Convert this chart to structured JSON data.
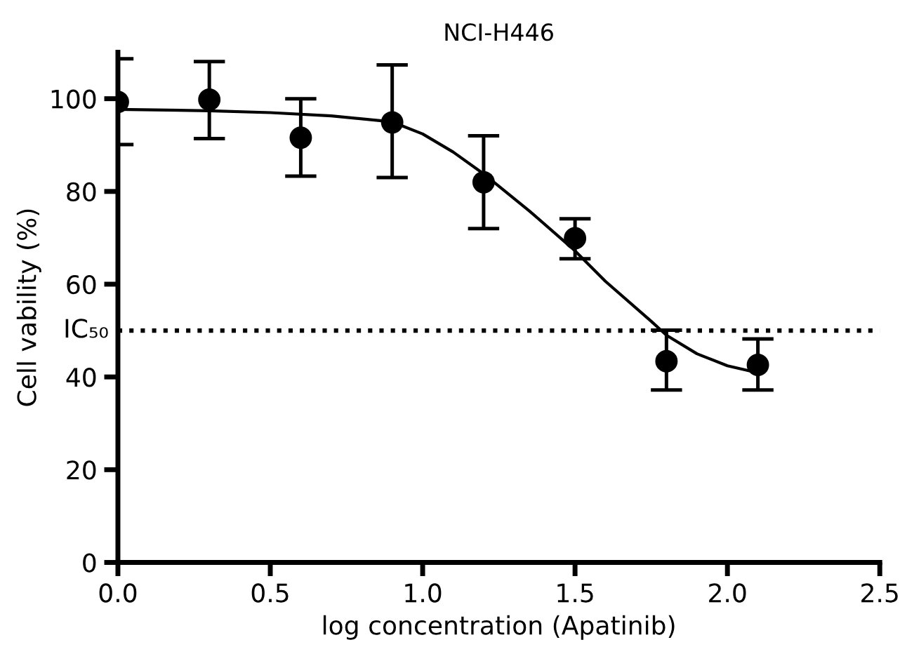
{
  "chart_data": {
    "type": "scatter",
    "title": "NCI-H446",
    "xlabel": "log concentration (Apatinib)",
    "ylabel": "Cell vability (%)",
    "xlim": [
      0,
      2.5
    ],
    "xticks": [
      {
        "value": 0,
        "label": "0.0"
      },
      0.5,
      {
        "value": 1,
        "label": "1.0"
      },
      1.5,
      {
        "value": 2,
        "label": "2.0"
      },
      2.5
    ],
    "ylim": [
      0,
      110
    ],
    "yticks": [
      0,
      20,
      40,
      60,
      80,
      100
    ],
    "grid": false,
    "legend": false,
    "marker": "circle",
    "series": [
      {
        "color": "#000000",
        "x": [
          0,
          0.3,
          0.6,
          0.9,
          1.2,
          1.5,
          1.8,
          2.1
        ],
        "values": [
          99.3,
          99.8,
          91.6,
          94.9,
          82.0,
          69.9,
          43.4,
          42.6
        ],
        "errors": [
          [
            90.1,
            108.6
          ],
          [
            91.4,
            108
          ],
          [
            83.3,
            100
          ],
          [
            83,
            107.3
          ],
          [
            72,
            92
          ],
          [
            65.5,
            74.1
          ],
          [
            37.2,
            50.1
          ],
          [
            37.2,
            48.2
          ]
        ]
      },
      {
        "type": "line",
        "color": "#000000",
        "line_style": "solid",
        "marker": "none",
        "x": [
          0,
          0.3,
          0.5,
          0.7,
          0.9,
          1.0,
          1.1,
          1.2,
          1.35,
          1.5,
          1.6,
          1.75,
          1.8,
          1.9,
          2.0,
          2.1
        ],
        "values": [
          97.7,
          97.4,
          97,
          96.3,
          95,
          92.4,
          88.5,
          83.8,
          75.8,
          67.2,
          60.6,
          52,
          49,
          45,
          42.4,
          40.9
        ]
      }
    ],
    "ref_lines": [
      {
        "axis": "y",
        "value": 50,
        "label": "IC₅₀",
        "line_style": "dotted",
        "color": "#000000"
      }
    ]
  }
}
